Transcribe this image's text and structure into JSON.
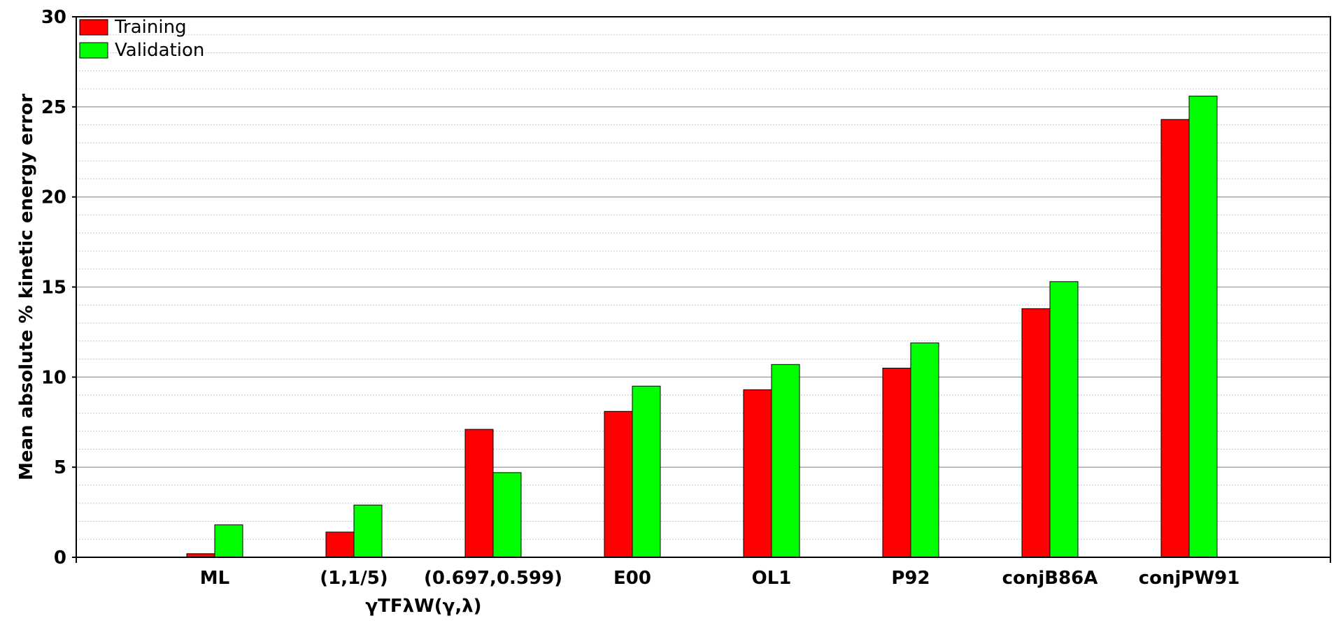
{
  "chart_data": {
    "type": "bar",
    "title": "",
    "xlabel": "",
    "ylabel": "Mean absolute % kinetic energy error",
    "ylim": [
      0,
      30
    ],
    "yticks": [
      0,
      5,
      10,
      15,
      20,
      25,
      30
    ],
    "grid": {
      "major": true,
      "minor": true
    },
    "legend_position": "top-left",
    "categories": [
      "ML",
      "(1,1/5)",
      "(0.697,0.599)",
      "E00",
      "OL1",
      "P92",
      "conjB86A",
      "conjPW91"
    ],
    "group_label": {
      "text": "γTFλW(γ,λ)",
      "categories": [
        "(1,1/5)",
        "(0.697,0.599)"
      ]
    },
    "series": [
      {
        "name": "Training",
        "color": "#ff0000",
        "values": [
          0.2,
          1.4,
          7.1,
          8.1,
          9.3,
          10.5,
          13.8,
          24.3
        ]
      },
      {
        "name": "Validation",
        "color": "#00ff00",
        "values": [
          1.8,
          2.9,
          4.7,
          9.5,
          10.7,
          11.9,
          15.3,
          25.6
        ]
      }
    ]
  }
}
